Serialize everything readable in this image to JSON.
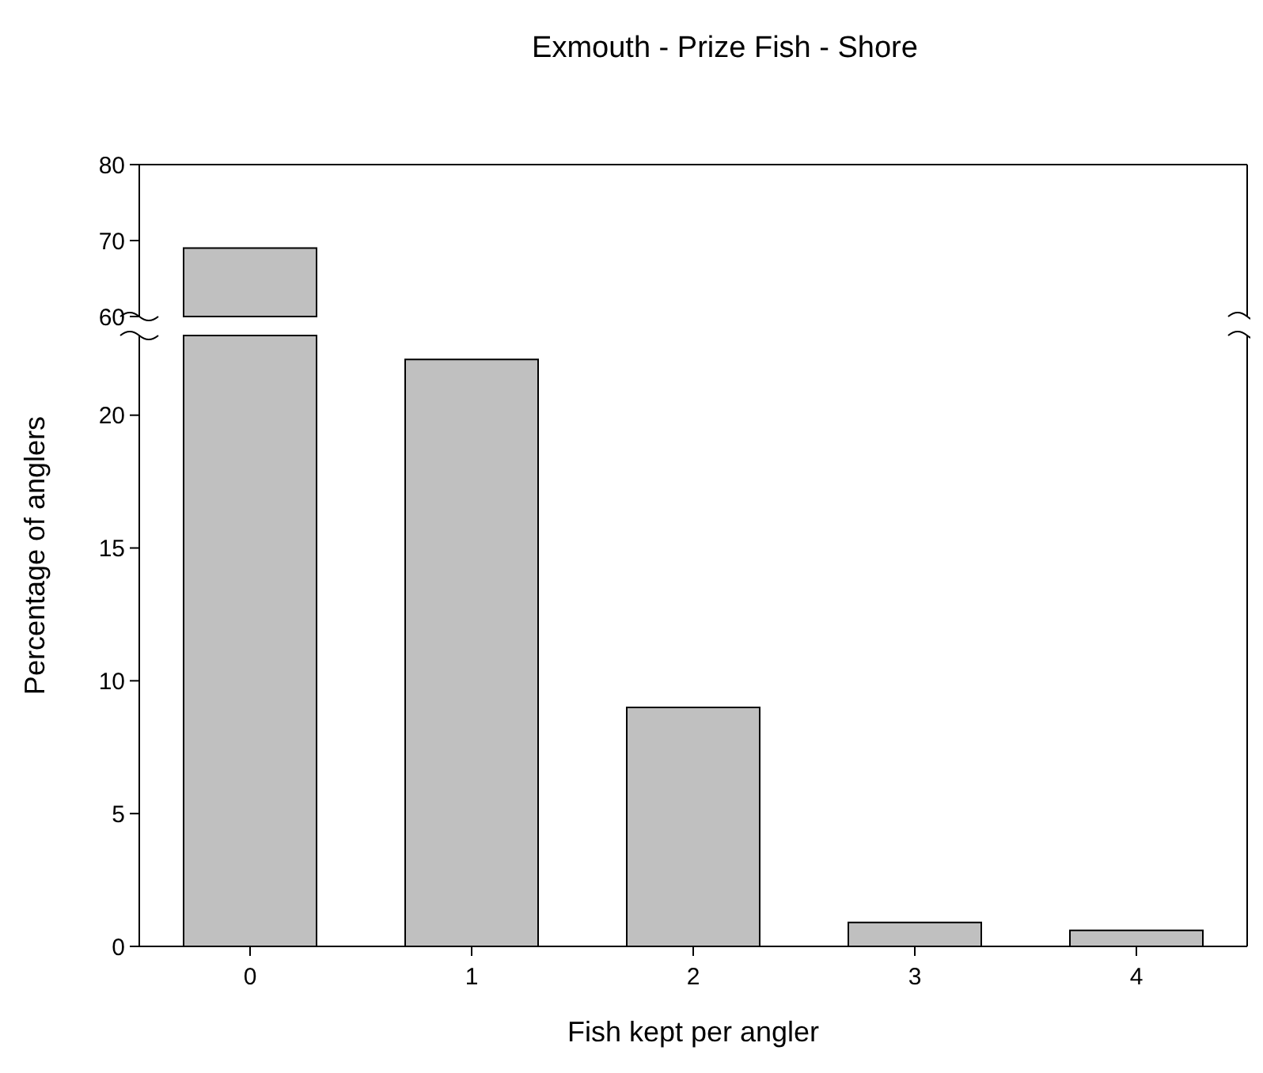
{
  "chart_data": [
    {
      "type": "bar",
      "title": "Exmouth - Prize Fish - Shore",
      "values": [
        69,
        null,
        null,
        null,
        null
      ],
      "color": "#c0c0c0",
      "ylim": [
        60,
        80
      ],
      "yticks": [
        60,
        70,
        80
      ],
      "tick_labels": "y"
    },
    {
      "type": "bar",
      "xlabel": "Fish kept per angler",
      "ylabel": "Percentage of anglers",
      "categories": [
        "0",
        "1",
        "2",
        "3",
        "4"
      ],
      "values": [
        null,
        22.1,
        9,
        0.9,
        0.6
      ],
      "color": "#c0c0c0",
      "ylim": [
        0,
        23
      ],
      "yticks": [
        0,
        5,
        10,
        15,
        20
      ]
    }
  ]
}
